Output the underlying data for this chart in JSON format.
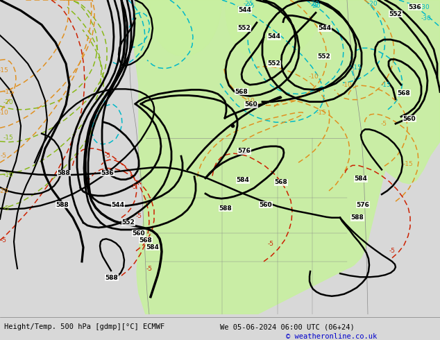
{
  "title_left": "Height/Temp. 500 hPa [gdmp][°C] ECMWF",
  "title_right": "We 05-06-2024 06:00 UTC (06+24)",
  "copyright": "© weatheronline.co.uk",
  "bg_color": "#d0d0d0",
  "green_color": "#c8f0a0",
  "fig_width": 6.34,
  "fig_height": 4.9,
  "dpi": 100
}
